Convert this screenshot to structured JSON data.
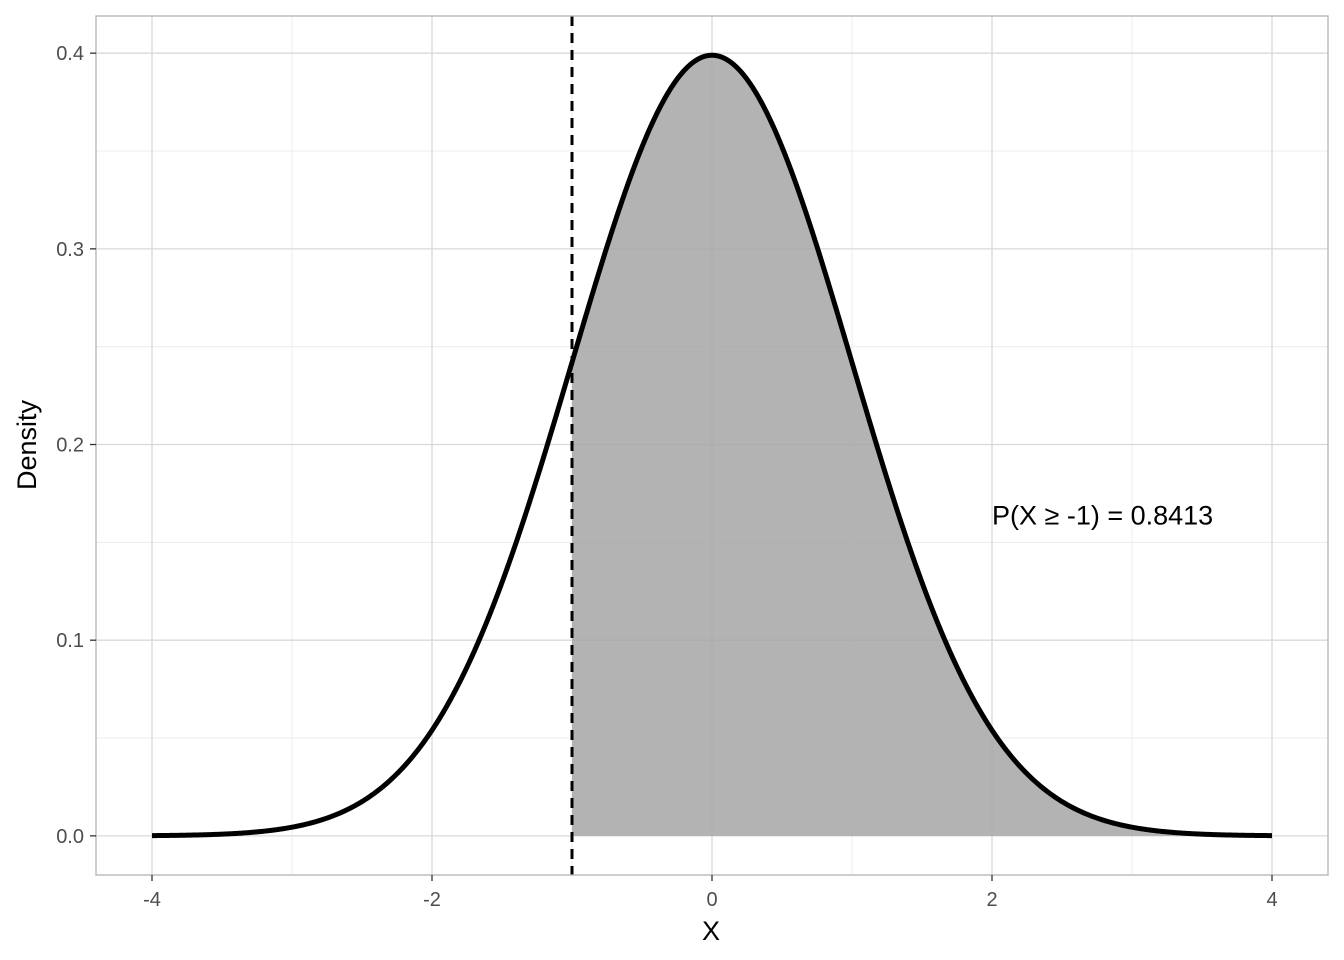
{
  "chart_data": {
    "type": "area",
    "distribution": "standard normal",
    "mean": 0,
    "sd": 1,
    "x_range": [
      -4,
      4
    ],
    "xlim": [
      -4.4,
      4.4
    ],
    "ylim": [
      -0.02,
      0.419
    ],
    "x_ticks": [
      -4,
      -2,
      0,
      2,
      4
    ],
    "x_tick_labels": [
      "-4",
      "-2",
      "0",
      "2",
      "4"
    ],
    "y_ticks": [
      0.0,
      0.1,
      0.2,
      0.3,
      0.4
    ],
    "y_tick_labels": [
      "0.0",
      "0.1",
      "0.2",
      "0.3",
      "0.4"
    ],
    "x_minor_ticks": [
      -3,
      -1,
      1,
      3
    ],
    "y_minor_ticks": [
      0.05,
      0.15,
      0.25,
      0.35
    ],
    "xlabel": "X",
    "ylabel": "Density",
    "title": "",
    "grid": true,
    "threshold": -1,
    "shaded_region": [
      -1,
      4
    ],
    "annotation": {
      "text": "P(X ≥ -1) = 0.8413",
      "x": 2.0,
      "y": 0.159
    },
    "colors": {
      "curve": "#000000",
      "fill": "#a6a6a6",
      "grid_major": "#d9d9d9",
      "grid_minor": "#ececec",
      "panel_border": "#b3b3b3",
      "tick_label": "#4d4d4d"
    }
  }
}
